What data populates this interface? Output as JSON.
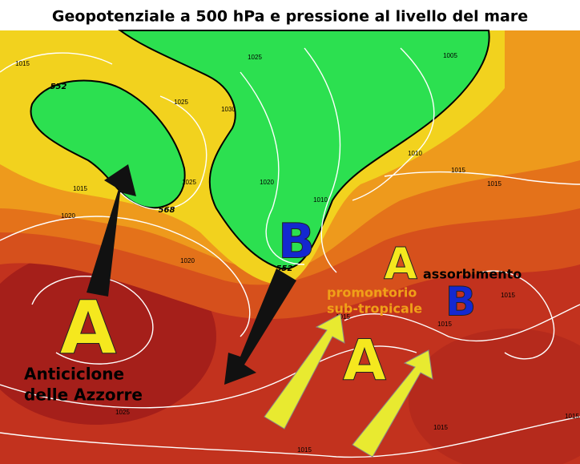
{
  "title": "Geopotenziale a 500 hPa e pressione al livello del mare",
  "pressure_systems": {
    "azores_high": "A",
    "north_low": "B",
    "ridge_high": "A",
    "south_high": "A",
    "east_low": "B"
  },
  "annotations": {
    "azores_name_line1": "Anticiclone",
    "azores_name_line2": "delle Azzorre",
    "ridge_line1": "promontorio",
    "ridge_line2": "sub-tropicale",
    "absorption": "assorbimento"
  },
  "isobar_labels": [
    "1015",
    "1015",
    "1020",
    "1025",
    "1025",
    "1030",
    "1025",
    "1020",
    "1010",
    "1010",
    "1005",
    "1015",
    "1015",
    "1020",
    "1015",
    "1015",
    "1015",
    "1025",
    "1015",
    "1015",
    "1015"
  ],
  "geopotential_labels": [
    "552",
    "568",
    "552"
  ]
}
